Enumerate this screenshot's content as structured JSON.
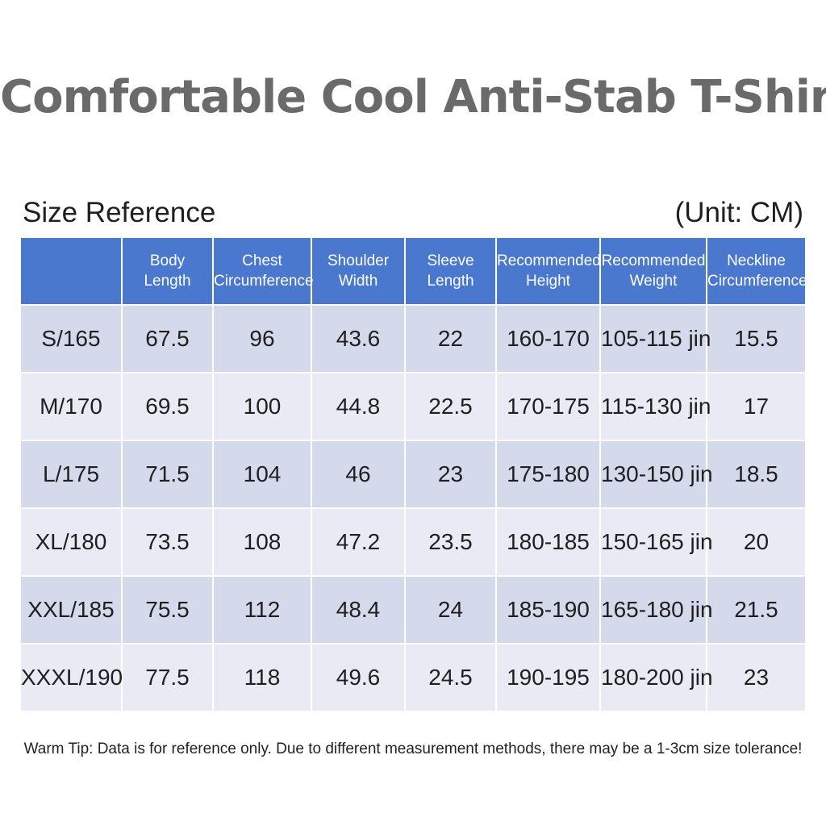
{
  "title": "Comfortable Cool Anti-Stab T-Shirt",
  "subtitle_left": "Size Reference",
  "subtitle_right": "(Unit: CM)",
  "table": {
    "headers": [
      "",
      "Body\nLength",
      "Chest\nCircumference",
      "Shoulder\nWidth",
      "Sleeve\nLength",
      "Recommended\nHeight",
      "Recommended\nWeight",
      "Neckline\nCircumference"
    ],
    "rows": [
      [
        "S/165",
        "67.5",
        "96",
        "43.6",
        "22",
        "160-170",
        "105-115 jin",
        "15.5"
      ],
      [
        "M/170",
        "69.5",
        "100",
        "44.8",
        "22.5",
        "170-175",
        "115-130 jin",
        "17"
      ],
      [
        "L/175",
        "71.5",
        "104",
        "46",
        "23",
        "175-180",
        "130-150 jin",
        "18.5"
      ],
      [
        "XL/180",
        "73.5",
        "108",
        "47.2",
        "23.5",
        "180-185",
        "150-165 jin",
        "20"
      ],
      [
        "XXL/185",
        "75.5",
        "112",
        "48.4",
        "24",
        "185-190",
        "165-180 jin",
        "21.5"
      ],
      [
        "XXXL/190",
        "77.5",
        "118",
        "49.6",
        "24.5",
        "190-195",
        "180-200 jin",
        "23"
      ]
    ]
  },
  "tip": "Warm Tip: Data is for reference only. Due to different measurement methods, there may be a 1-3cm size tolerance!",
  "colors": {
    "header_bg": "#4a78cf",
    "row_odd": "#d4daeb",
    "row_even": "#e8ebf4",
    "title_text": "#6a6a6a"
  }
}
